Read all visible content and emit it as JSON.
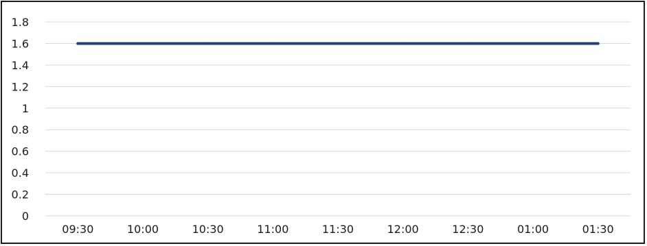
{
  "chart_data": {
    "type": "line",
    "title": "",
    "xlabel": "",
    "ylabel": "",
    "categories": [
      "09:30",
      "10:00",
      "10:30",
      "11:00",
      "11:30",
      "12:00",
      "12:30",
      "01:00",
      "01:30"
    ],
    "series": [
      {
        "values": [
          1.6,
          1.6,
          1.6,
          1.6,
          1.6,
          1.6,
          1.6,
          1.6,
          1.6
        ],
        "color": "#1f3f7a"
      }
    ],
    "ylim": [
      0,
      1.8
    ],
    "yticks": [
      "0",
      "0.2",
      "0.4",
      "0.6",
      "0.8",
      "1",
      "1.2",
      "1.4",
      "1.6",
      "1.8"
    ],
    "grid": true,
    "gridColor": "#d9d9d9",
    "legend": "none"
  }
}
